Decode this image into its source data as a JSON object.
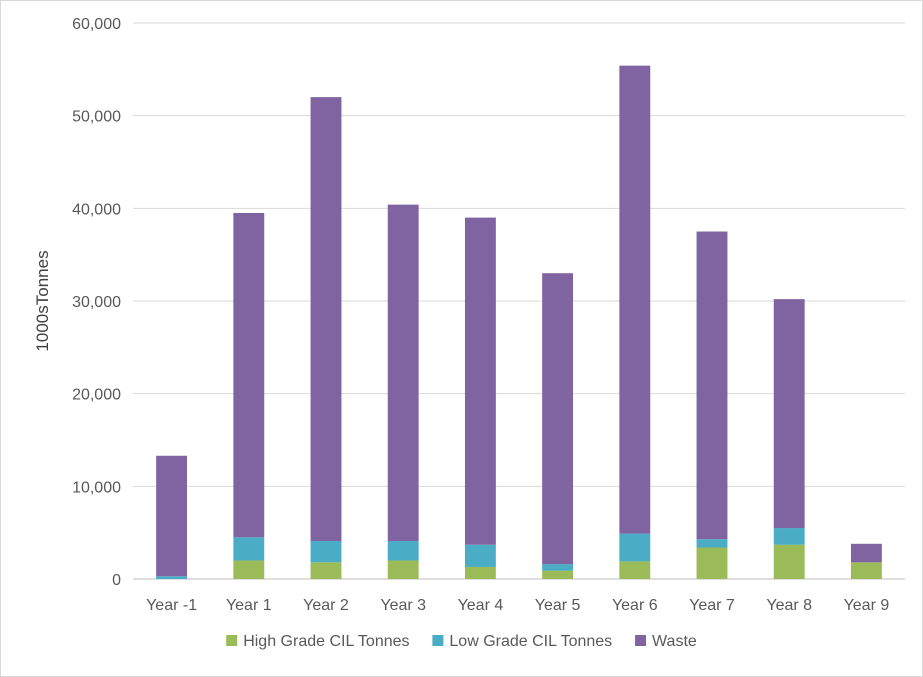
{
  "chart_data": {
    "type": "bar",
    "stacked": true,
    "categories": [
      "Year -1",
      "Year 1",
      "Year 2",
      "Year 3",
      "Year 4",
      "Year 5",
      "Year 6",
      "Year 7",
      "Year 8",
      "Year 9"
    ],
    "series": [
      {
        "name": "High Grade CIL Tonnes",
        "color": "#9bbb59",
        "values": [
          0,
          2000,
          1800,
          2000,
          1300,
          900,
          1900,
          3400,
          3700,
          1800
        ]
      },
      {
        "name": "Low Grade CIL Tonnes",
        "color": "#4bacc6",
        "values": [
          300,
          2500,
          2300,
          2100,
          2400,
          700,
          3000,
          900,
          1800,
          0
        ]
      },
      {
        "name": "Waste",
        "color": "#8064a2",
        "values": [
          13000,
          35000,
          47900,
          36300,
          35300,
          31400,
          50500,
          33200,
          24700,
          2000
        ]
      }
    ],
    "title": "",
    "xlabel": "",
    "ylabel": "1000sTonnes",
    "ylim": [
      0,
      60000
    ],
    "yticks": [
      0,
      10000,
      20000,
      30000,
      40000,
      50000,
      60000
    ],
    "ytick_labels": [
      "0",
      "10,000",
      "20,000",
      "30,000",
      "40,000",
      "50,000",
      "60,000"
    ],
    "grid": true,
    "gridline_color": "#d9d9d9",
    "legend_position": "bottom"
  }
}
